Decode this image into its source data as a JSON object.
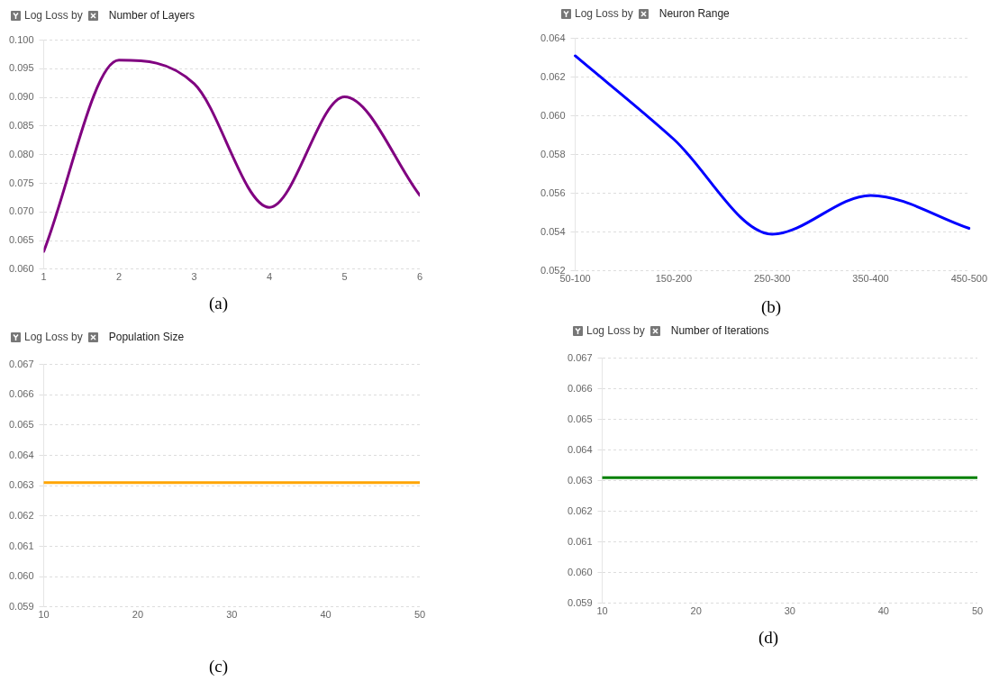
{
  "chart_data": [
    {
      "type": "line",
      "title": "Log Loss by",
      "xlabel": "Number of Layers",
      "annotations": [
        "(a)"
      ],
      "x": [
        1,
        2,
        3,
        4,
        5,
        6
      ],
      "xlim": [
        1,
        6
      ],
      "xticks": [
        1,
        2,
        3,
        4,
        5,
        6
      ],
      "series": [
        {
          "color": "#800080",
          "values": [
            0.0631,
            0.0965,
            0.0924,
            0.0708,
            0.0901,
            0.0729
          ]
        }
      ],
      "ylim": [
        0.06,
        0.1
      ],
      "yticks": [
        {
          "value": 0.06,
          "label": "0.060"
        },
        0.065,
        {
          "value": 0.07,
          "label": "0.070"
        },
        0.075,
        {
          "value": 0.08,
          "label": "0.080"
        },
        0.085,
        {
          "value": 0.09,
          "label": "0.090"
        },
        0.095,
        {
          "value": 0.1,
          "label": "0.100"
        }
      ],
      "grid": "y",
      "legend": false,
      "marker": "none"
    },
    {
      "type": "line",
      "title": "Log Loss by",
      "xlabel": "Neuron Range",
      "annotations": [
        "(b)"
      ],
      "categories": [
        "50-100",
        "150-200",
        "250-300",
        "350-400",
        "450-500"
      ],
      "series": [
        {
          "color": "#0000ff",
          "values": [
            0.0631,
            0.0588,
            0.0539,
            0.0559,
            0.0542
          ]
        }
      ],
      "ylim": [
        0.052,
        0.064
      ],
      "yticks": [
        0.052,
        0.054,
        0.056,
        0.058,
        {
          "value": 0.06,
          "label": "0.060"
        },
        0.062,
        0.064
      ],
      "grid": "y",
      "legend": false,
      "marker": "none"
    },
    {
      "type": "line",
      "title": "Log Loss by",
      "xlabel": "Population Size",
      "annotations": [
        "(c)"
      ],
      "x": [
        10,
        20,
        30,
        40,
        50
      ],
      "xlim": [
        10,
        50
      ],
      "xticks": [
        10,
        20,
        30,
        40,
        50
      ],
      "series": [
        {
          "color": "#ffa500",
          "values": [
            0.0631,
            0.0631,
            0.0631,
            0.0631,
            0.0631
          ]
        }
      ],
      "ylim": [
        0.059,
        0.067
      ],
      "yticks": [
        0.059,
        {
          "value": 0.06,
          "label": "0.060"
        },
        0.061,
        0.062,
        0.063,
        0.064,
        0.065,
        0.066,
        0.067
      ],
      "grid": "y",
      "legend": false,
      "marker": "none"
    },
    {
      "type": "line",
      "title": "Log Loss by",
      "xlabel": "Number of Iterations",
      "annotations": [
        "(d)"
      ],
      "x": [
        10,
        20,
        30,
        40,
        50
      ],
      "xlim": [
        10,
        50
      ],
      "xticks": [
        10,
        20,
        30,
        40,
        50
      ],
      "series": [
        {
          "color": "#008000",
          "values": [
            0.0631,
            0.0631,
            0.0631,
            0.0631,
            0.0631
          ]
        }
      ],
      "ylim": [
        0.059,
        0.067
      ],
      "yticks": [
        0.059,
        {
          "value": 0.06,
          "label": "0.060"
        },
        0.061,
        0.062,
        0.063,
        0.064,
        0.065,
        0.066,
        0.067
      ],
      "grid": "y",
      "legend": false,
      "marker": "none"
    }
  ]
}
